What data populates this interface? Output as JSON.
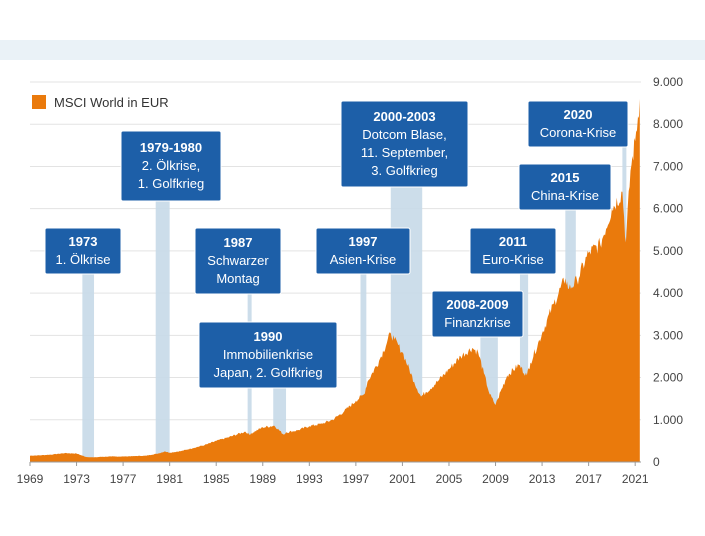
{
  "chart_data": {
    "type": "area",
    "legend": {
      "label": "MSCI World in EUR",
      "position": "top-left"
    },
    "colors": {
      "area": "#ea7a0c",
      "band": "#c7d9e8",
      "box": "#1d5fa8",
      "grid": "#e3e3e3"
    },
    "xlim": [
      1969,
      2021.5
    ],
    "ylim": [
      0,
      9000
    ],
    "x_ticks": [
      "1969",
      "1973",
      "1977",
      "1981",
      "1985",
      "1989",
      "1993",
      "1997",
      "2001",
      "2005",
      "2009",
      "2013",
      "2017",
      "2021"
    ],
    "y_ticks": [
      "0",
      "1.000",
      "2.000",
      "3.000",
      "4.000",
      "5.000",
      "6.000",
      "7.000",
      "8.000",
      "9.000"
    ],
    "y_tick_values": [
      0,
      1000,
      2000,
      3000,
      4000,
      5000,
      6000,
      7000,
      8000,
      9000
    ],
    "series": [
      {
        "name": "MSCI World in EUR",
        "x": [
          1969,
          1970,
          1971,
          1972,
          1973,
          1973.8,
          1974.5,
          1975,
          1976,
          1977,
          1978,
          1979,
          1980,
          1980.6,
          1981,
          1982,
          1983,
          1984,
          1985,
          1986,
          1987.5,
          1987.9,
          1988,
          1989,
          1990,
          1990.8,
          1991,
          1992,
          1993,
          1994,
          1995,
          1996,
          1997,
          1997.7,
          1998,
          1999,
          2000,
          2000.3,
          2001,
          2002,
          2002.6,
          2003,
          2004,
          2005,
          2006,
          2007,
          2007.5,
          2008,
          2008.5,
          2009,
          2009.2,
          2010,
          2011,
          2011.7,
          2012,
          2013,
          2014,
          2015,
          2015.3,
          2016,
          2017,
          2018,
          2019,
          2019.9,
          2020.2,
          2020.6,
          2021,
          2021.4
        ],
        "values": [
          150,
          160,
          180,
          210,
          200,
          120,
          110,
          120,
          130,
          130,
          140,
          150,
          200,
          250,
          220,
          260,
          330,
          400,
          500,
          580,
          720,
          640,
          680,
          820,
          860,
          650,
          700,
          750,
          850,
          900,
          1000,
          1200,
          1450,
          1600,
          1900,
          2400,
          3050,
          2900,
          2600,
          1900,
          1550,
          1650,
          1900,
          2200,
          2500,
          2700,
          2600,
          2100,
          1600,
          1350,
          1500,
          2050,
          2300,
          2050,
          2350,
          3050,
          3750,
          4350,
          4100,
          4300,
          4950,
          5150,
          6000,
          6400,
          5200,
          6900,
          7600,
          8600
        ]
      }
    ],
    "events": [
      {
        "lines": [
          "1973",
          "1. Ölkrise"
        ],
        "band": [
          1973.5,
          1974.5
        ]
      },
      {
        "lines": [
          "1979-1980",
          "2. Ölkrise,",
          "1. Golfkrieg"
        ],
        "band": [
          1979.8,
          1981.0
        ]
      },
      {
        "lines": [
          "1987",
          "Schwarzer",
          "Montag"
        ],
        "band": [
          1987.7,
          1988.0
        ]
      },
      {
        "lines": [
          "1990",
          "Immobilienkrise",
          "Japan, 2. Golfkrieg"
        ],
        "band": [
          1989.9,
          1991.0
        ]
      },
      {
        "lines": [
          "1997",
          "Asien-Krise"
        ],
        "band": [
          1997.4,
          1997.9
        ]
      },
      {
        "lines": [
          "2000-2003",
          "Dotcom Blase,",
          "11. September,",
          "3. Golfkrieg"
        ],
        "band": [
          2000.0,
          2002.7
        ]
      },
      {
        "lines": [
          "2008-2009",
          "Finanzkrise"
        ],
        "band": [
          2007.7,
          2009.2
        ]
      },
      {
        "lines": [
          "2011",
          "Euro-Krise"
        ],
        "band": [
          2011.1,
          2011.8
        ]
      },
      {
        "lines": [
          "2015",
          "China-Krise"
        ],
        "band": [
          2015.0,
          2015.9
        ]
      },
      {
        "lines": [
          "2020",
          "Corona-Krise"
        ],
        "band": [
          2019.9,
          2020.2
        ]
      }
    ]
  }
}
